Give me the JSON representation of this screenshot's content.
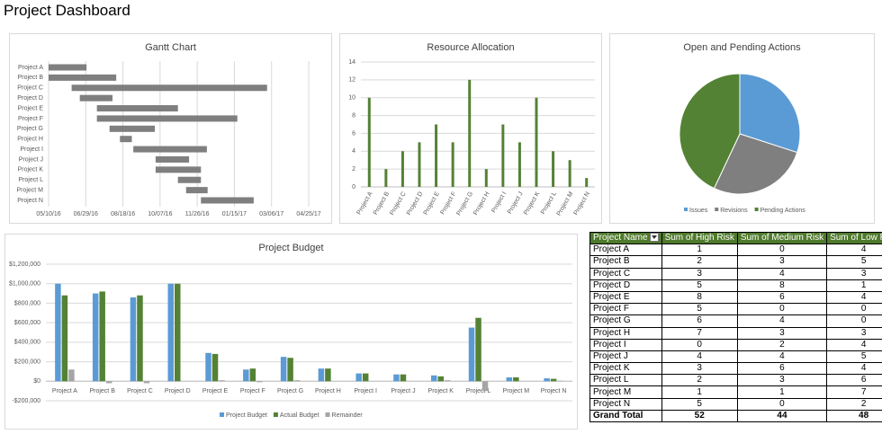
{
  "title": "Project Dashboard",
  "chart_data": [
    {
      "type": "gantt",
      "title": "Gantt Chart",
      "categories": [
        "Project A",
        "Project B",
        "Project C",
        "Project D",
        "Project E",
        "Project F",
        "Project G",
        "Project H",
        "Project I",
        "Project J",
        "Project K",
        "Project L",
        "Project M",
        "Project N"
      ],
      "starts": [
        42500,
        42500,
        42531,
        42542,
        42565,
        42565,
        42582,
        42596,
        42614,
        42644,
        42644,
        42674,
        42685,
        42705
      ],
      "durations": [
        51,
        91,
        263,
        44,
        109,
        189,
        61,
        16,
        99,
        45,
        61,
        31,
        29,
        71
      ],
      "color": "#7f7f7f",
      "xlim": [
        42500,
        42850
      ],
      "xticks": [
        {
          "value": 42500,
          "label": "05/10/16"
        },
        {
          "value": 42550,
          "label": "06/29/16"
        },
        {
          "value": 42600,
          "label": "08/18/16"
        },
        {
          "value": 42650,
          "label": "10/07/16"
        },
        {
          "value": 42700,
          "label": "11/26/16"
        },
        {
          "value": 42750,
          "label": "01/15/17"
        },
        {
          "value": 42800,
          "label": "03/06/17"
        },
        {
          "value": 42850,
          "label": "04/25/17"
        }
      ],
      "grid": true
    },
    {
      "type": "bar",
      "title": "Resource Allocation",
      "categories": [
        "Project A",
        "Project B",
        "Project C",
        "Project D",
        "Project E",
        "Project F",
        "Project G",
        "Project H",
        "Project I",
        "Project J",
        "Project K",
        "Project L",
        "Project M",
        "Project N"
      ],
      "values": [
        10,
        2,
        4,
        5,
        7,
        5,
        12,
        2,
        7,
        5,
        10,
        4,
        3,
        1
      ],
      "color": "#548235",
      "ylim": [
        0,
        14
      ],
      "yticks": [
        0,
        2,
        4,
        6,
        8,
        10,
        12,
        14
      ],
      "grid": true
    },
    {
      "type": "pie",
      "title": "Open and Pending Actions",
      "categories": [
        "Issues",
        "Revisions",
        "Pending Actions"
      ],
      "values": [
        30,
        27,
        43
      ],
      "colors": [
        "#5b9bd5",
        "#7f7f7f",
        "#548235"
      ]
    },
    {
      "type": "bar",
      "title": "Project Budget",
      "categories": [
        "Project A",
        "Project B",
        "Project C",
        "Project D",
        "Project E",
        "Project F",
        "Project G",
        "Project H",
        "Project I",
        "Project J",
        "Project K",
        "Project L",
        "Project M",
        "Project N"
      ],
      "series": [
        {
          "name": "Project Budget",
          "color": "#5b9bd5",
          "values": [
            1000000,
            900000,
            860000,
            1000000,
            290000,
            120000,
            250000,
            130000,
            80000,
            70000,
            60000,
            550000,
            40000,
            30000
          ]
        },
        {
          "name": "Actual Budget",
          "color": "#548235",
          "values": [
            880000,
            920000,
            880000,
            1000000,
            280000,
            130000,
            240000,
            130000,
            80000,
            70000,
            50000,
            650000,
            40000,
            25000
          ]
        },
        {
          "name": "Remainder",
          "color": "#a5a5a5",
          "values": [
            120000,
            -20000,
            -20000,
            0,
            10000,
            -10000,
            10000,
            0,
            0,
            0,
            10000,
            -100000,
            0,
            5000
          ]
        }
      ],
      "ylim": [
        -200000,
        1200000
      ],
      "yticks": [
        {
          "value": -200000,
          "label": "-$200,000"
        },
        {
          "value": 0,
          "label": "$0"
        },
        {
          "value": 200000,
          "label": "$200,000"
        },
        {
          "value": 400000,
          "label": "$400,000"
        },
        {
          "value": 600000,
          "label": "$600,000"
        },
        {
          "value": 800000,
          "label": "$800,000"
        },
        {
          "value": 1000000,
          "label": "$1,000,000"
        },
        {
          "value": 1200000,
          "label": "$1,200,000"
        }
      ],
      "grid": true
    }
  ],
  "table": {
    "columns": [
      "Project Name",
      "Sum of High Risk",
      "Sum of Medium Risk",
      "Sum of Low Risk"
    ],
    "rows": [
      [
        "Project A",
        1,
        0,
        4
      ],
      [
        "Project B",
        2,
        3,
        5
      ],
      [
        "Project C",
        3,
        4,
        3
      ],
      [
        "Project D",
        5,
        8,
        1
      ],
      [
        "Project E",
        8,
        6,
        4
      ],
      [
        "Project F",
        5,
        0,
        0
      ],
      [
        "Project G",
        6,
        4,
        0
      ],
      [
        "Project H",
        7,
        3,
        3
      ],
      [
        "Project I",
        0,
        2,
        4
      ],
      [
        "Project J",
        4,
        4,
        5
      ],
      [
        "Project K",
        3,
        6,
        4
      ],
      [
        "Project L",
        2,
        3,
        6
      ],
      [
        "Project M",
        1,
        1,
        7
      ],
      [
        "Project N",
        5,
        0,
        2
      ]
    ],
    "total": [
      "Grand Total",
      52,
      44,
      48
    ]
  }
}
